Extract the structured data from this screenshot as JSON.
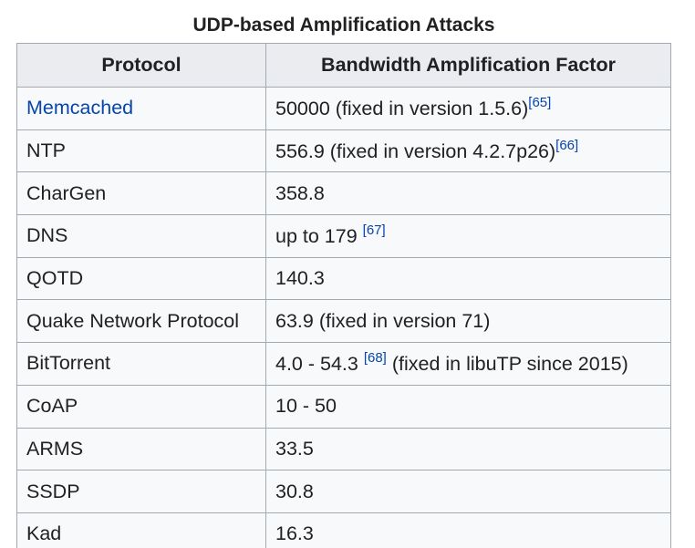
{
  "table": {
    "caption": "UDP-based Amplification Attacks",
    "headers": [
      "Protocol",
      "Bandwidth Amplification Factor"
    ],
    "rows": [
      {
        "protocol": "Memcached",
        "protocol_link": true,
        "factor": "50000 (fixed in version 1.5.6)",
        "ref": "[65]",
        "ref_spaced": false,
        "tail": ""
      },
      {
        "protocol": "NTP",
        "protocol_link": false,
        "factor": "556.9 (fixed in version 4.2.7p26)",
        "ref": "[66]",
        "ref_spaced": false,
        "tail": ""
      },
      {
        "protocol": "CharGen",
        "protocol_link": false,
        "factor": "358.8",
        "ref": "",
        "ref_spaced": false,
        "tail": ""
      },
      {
        "protocol": "DNS",
        "protocol_link": false,
        "factor": "up to 179",
        "ref": "[67]",
        "ref_spaced": true,
        "tail": ""
      },
      {
        "protocol": "QOTD",
        "protocol_link": false,
        "factor": "140.3",
        "ref": "",
        "ref_spaced": false,
        "tail": ""
      },
      {
        "protocol": "Quake Network Protocol",
        "protocol_link": false,
        "factor": "63.9 (fixed in version 71)",
        "ref": "",
        "ref_spaced": false,
        "tail": ""
      },
      {
        "protocol": "BitTorrent",
        "protocol_link": false,
        "factor": "4.0 - 54.3",
        "ref": "[68]",
        "ref_spaced": true,
        "tail": " (fixed in libuTP since 2015)"
      },
      {
        "protocol": "CoAP",
        "protocol_link": false,
        "factor": "10 - 50",
        "ref": "",
        "ref_spaced": false,
        "tail": ""
      },
      {
        "protocol": "ARMS",
        "protocol_link": false,
        "factor": "33.5",
        "ref": "",
        "ref_spaced": false,
        "tail": ""
      },
      {
        "protocol": "SSDP",
        "protocol_link": false,
        "factor": "30.8",
        "ref": "",
        "ref_spaced": false,
        "tail": ""
      },
      {
        "protocol": "Kad",
        "protocol_link": false,
        "factor": "16.3",
        "ref": "",
        "ref_spaced": false,
        "tail": ""
      }
    ]
  },
  "colors": {
    "link": "#0645ad",
    "header_bg": "#eaecf0",
    "cell_bg": "#f8f9fa",
    "border": "#a2a9b1",
    "text": "#202122"
  }
}
